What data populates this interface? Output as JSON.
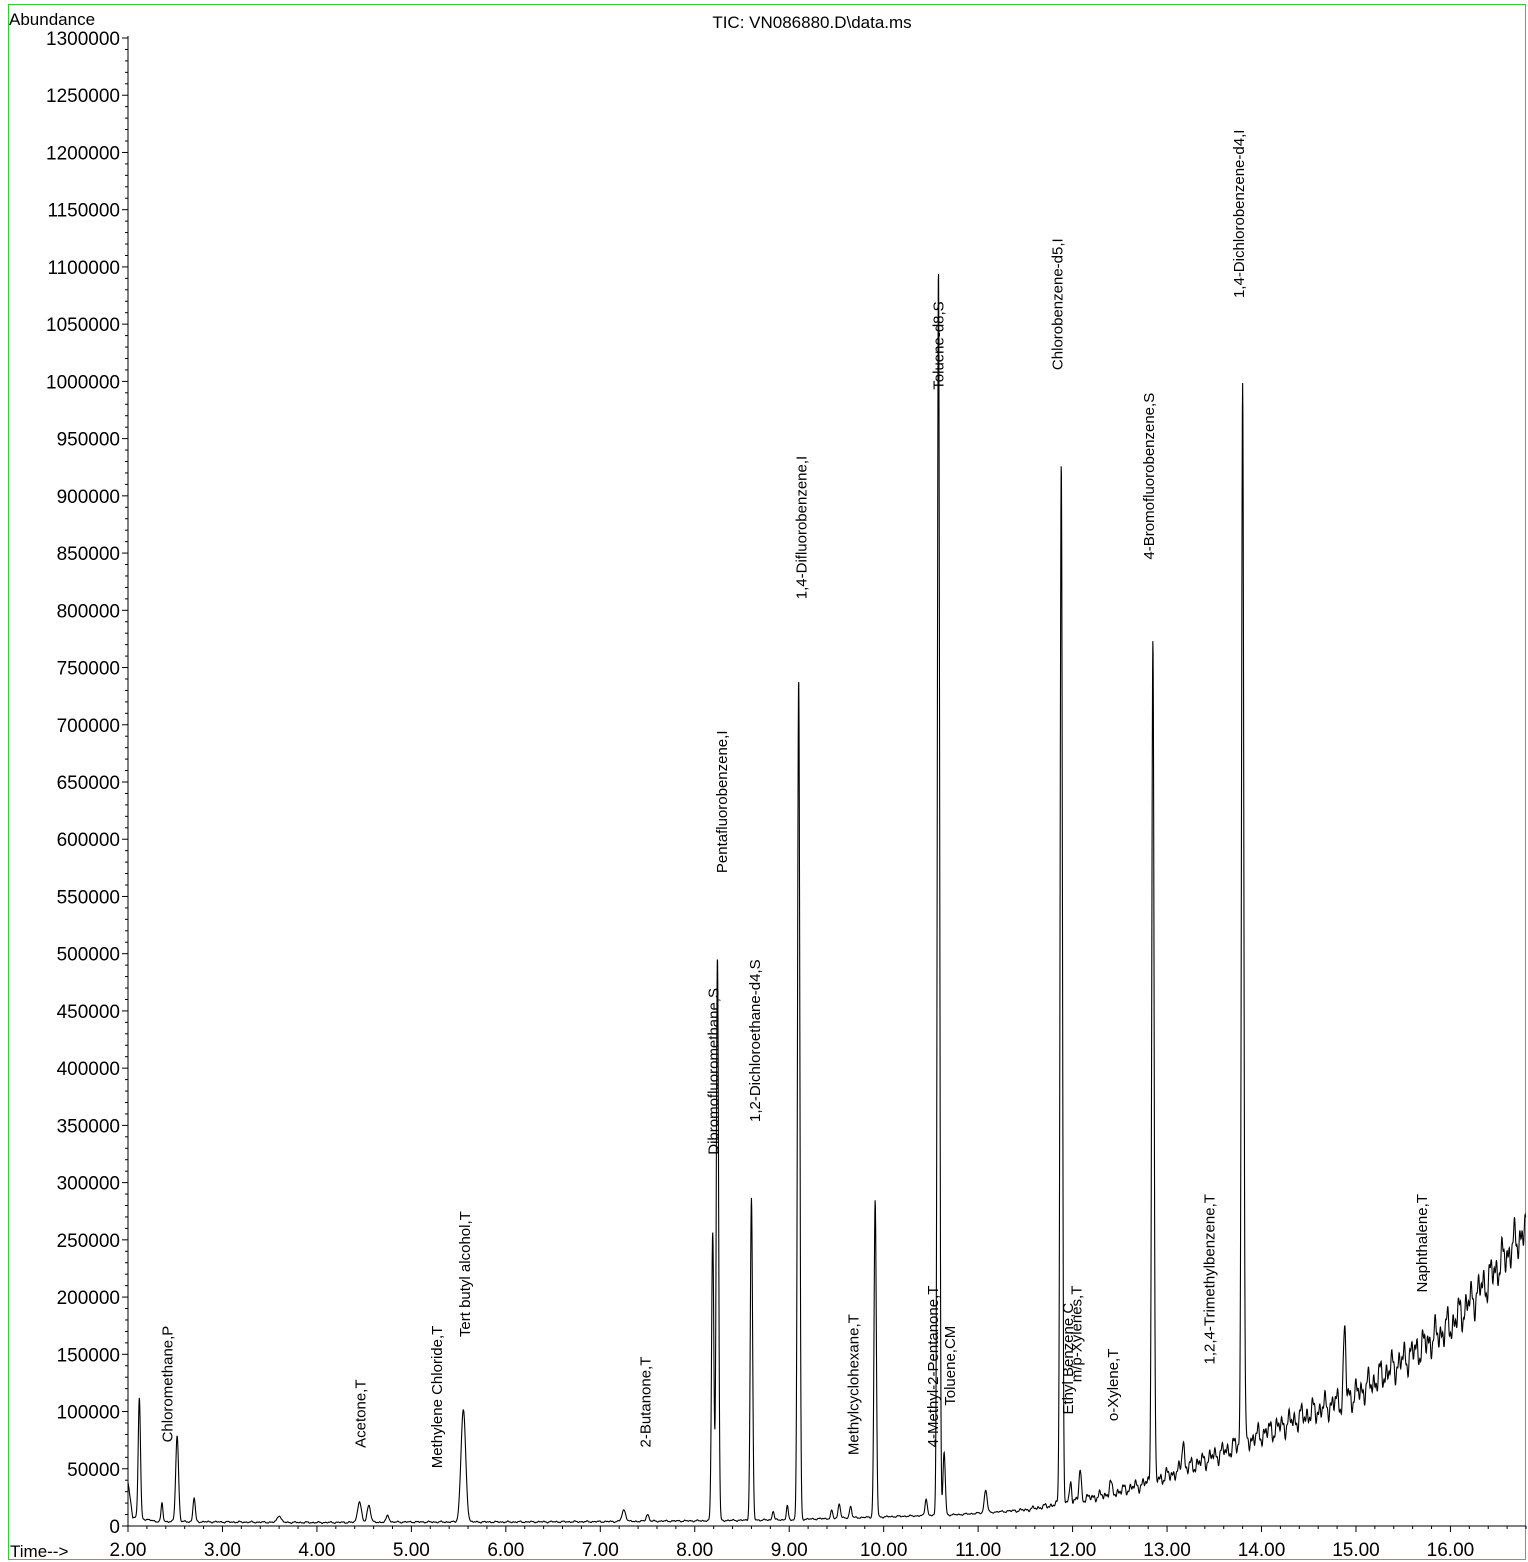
{
  "chart_data": {
    "type": "line",
    "title": "TIC: VN086880.D\\data.ms",
    "ylabel": "Abundance",
    "xlabel": "Time-->",
    "xlim": [
      2.0,
      16.8
    ],
    "ylim": [
      0,
      1300000
    ],
    "x_ticks": [
      "2.00",
      "3.00",
      "4.00",
      "5.00",
      "6.00",
      "7.00",
      "8.00",
      "9.00",
      "10.00",
      "11.00",
      "12.00",
      "13.00",
      "14.00",
      "15.00",
      "16.00"
    ],
    "y_ticks": [
      "0",
      "50000",
      "100000",
      "150000",
      "200000",
      "250000",
      "300000",
      "350000",
      "400000",
      "450000",
      "500000",
      "550000",
      "600000",
      "650000",
      "700000",
      "750000",
      "800000",
      "850000",
      "900000",
      "950000",
      "1000000",
      "1050000",
      "1100000",
      "1150000",
      "1200000",
      "1250000",
      "1300000"
    ],
    "series": [
      {
        "baseline": [
          [
            2.0,
            38000
          ],
          [
            2.05,
            8000
          ],
          [
            2.3,
            4000
          ],
          [
            3.0,
            3500
          ],
          [
            4.0,
            3000
          ],
          [
            5.0,
            3500
          ],
          [
            6.0,
            3500
          ],
          [
            7.0,
            3800
          ],
          [
            8.0,
            4500
          ],
          [
            9.0,
            5500
          ],
          [
            10.0,
            8000
          ],
          [
            10.8,
            10000
          ],
          [
            11.5,
            14000
          ],
          [
            11.9,
            20000
          ],
          [
            12.0,
            22000
          ],
          [
            12.4,
            28000
          ],
          [
            12.8,
            38000
          ],
          [
            13.2,
            50000
          ],
          [
            13.6,
            65000
          ],
          [
            14.0,
            80000
          ],
          [
            14.5,
            98000
          ],
          [
            15.0,
            115000
          ],
          [
            15.5,
            145000
          ],
          [
            16.0,
            175000
          ],
          [
            16.4,
            215000
          ],
          [
            16.8,
            260000
          ]
        ],
        "peaks": [
          {
            "x": 2.12,
            "y": 105000,
            "w": 0.012
          },
          {
            "x": 2.36,
            "y": 16000,
            "w": 0.01
          },
          {
            "x": 2.52,
            "y": 75000,
            "w": 0.015
          },
          {
            "x": 2.7,
            "y": 21000,
            "w": 0.012
          },
          {
            "x": 3.6,
            "y": 6000,
            "w": 0.02
          },
          {
            "x": 4.45,
            "y": 18000,
            "w": 0.02
          },
          {
            "x": 4.55,
            "y": 15000,
            "w": 0.018
          },
          {
            "x": 4.75,
            "y": 6000,
            "w": 0.015
          },
          {
            "x": 5.55,
            "y": 98000,
            "w": 0.025
          },
          {
            "x": 7.25,
            "y": 10000,
            "w": 0.02
          },
          {
            "x": 7.5,
            "y": 6000,
            "w": 0.015
          },
          {
            "x": 8.19,
            "y": 252000,
            "w": 0.012
          },
          {
            "x": 8.24,
            "y": 493000,
            "w": 0.012
          },
          {
            "x": 8.6,
            "y": 281000,
            "w": 0.012
          },
          {
            "x": 8.83,
            "y": 8000,
            "w": 0.01
          },
          {
            "x": 8.98,
            "y": 12000,
            "w": 0.01
          },
          {
            "x": 9.1,
            "y": 735000,
            "w": 0.012
          },
          {
            "x": 9.45,
            "y": 7000,
            "w": 0.01
          },
          {
            "x": 9.53,
            "y": 13000,
            "w": 0.012
          },
          {
            "x": 9.65,
            "y": 10000,
            "w": 0.012
          },
          {
            "x": 9.91,
            "y": 277000,
            "w": 0.012
          },
          {
            "x": 10.45,
            "y": 15000,
            "w": 0.012
          },
          {
            "x": 10.58,
            "y": 1090000,
            "w": 0.012
          },
          {
            "x": 10.64,
            "y": 55000,
            "w": 0.012
          },
          {
            "x": 11.08,
            "y": 20000,
            "w": 0.015
          },
          {
            "x": 11.88,
            "y": 910000,
            "w": 0.012
          },
          {
            "x": 11.98,
            "y": 18000,
            "w": 0.01
          },
          {
            "x": 12.08,
            "y": 25000,
            "w": 0.012
          },
          {
            "x": 12.4,
            "y": 10000,
            "w": 0.012
          },
          {
            "x": 12.85,
            "y": 735000,
            "w": 0.012
          },
          {
            "x": 13.17,
            "y": 28000,
            "w": 0.012
          },
          {
            "x": 13.8,
            "y": 930000,
            "w": 0.012
          },
          {
            "x": 14.88,
            "y": 60000,
            "w": 0.012
          }
        ]
      }
    ],
    "annotations": [
      {
        "text": "Chloromethane,P",
        "x": 2.42,
        "y_top": 175000
      },
      {
        "text": "Acetone,T",
        "x": 4.46,
        "y_top": 128000
      },
      {
        "text": "Methylene Chloride,T",
        "x": 5.27,
        "y_top": 175000
      },
      {
        "text": "Tert butyl alcohol,T",
        "x": 5.57,
        "y_top": 275000
      },
      {
        "text": "2-Butanone,T",
        "x": 7.48,
        "y_top": 148000
      },
      {
        "text": "Dibromofluoromethane,S",
        "x": 8.2,
        "y_top": 470000
      },
      {
        "text": "Pentafluorobenzene,I",
        "x": 8.29,
        "y_top": 695000
      },
      {
        "text": "1,2-Dichloroethane-d4,S",
        "x": 8.64,
        "y_top": 495000
      },
      {
        "text": "1,4-Difluorobenzene,I",
        "x": 9.13,
        "y_top": 935000
      },
      {
        "text": "Methylcyclohexane,T",
        "x": 9.68,
        "y_top": 185000
      },
      {
        "text": "4-Methyl-2-Pentanone,T",
        "x": 10.52,
        "y_top": 210000
      },
      {
        "text": "Toluene-d8,S",
        "x": 10.58,
        "y_top": 1070000
      },
      {
        "text": "Toluene,CM",
        "x": 10.7,
        "y_top": 175000
      },
      {
        "text": "Chlorobenzene-d5,I",
        "x": 11.84,
        "y_top": 1125000
      },
      {
        "text": "Ethyl Benzene,C",
        "x": 11.95,
        "y_top": 195000
      },
      {
        "text": "m/p-Xylenes,T",
        "x": 12.04,
        "y_top": 210000
      },
      {
        "text": "o-Xylene,T",
        "x": 12.43,
        "y_top": 155000
      },
      {
        "text": "4-Bromofluorobenzene,S",
        "x": 12.81,
        "y_top": 990000
      },
      {
        "text": "1,2,4-Trimethylbenzene,T",
        "x": 13.45,
        "y_top": 290000
      },
      {
        "text": "1,4-Dichlorobenzene-d4,I",
        "x": 13.76,
        "y_top": 1220000
      },
      {
        "text": "Naphthalene,T",
        "x": 15.7,
        "y_top": 290000
      }
    ]
  }
}
